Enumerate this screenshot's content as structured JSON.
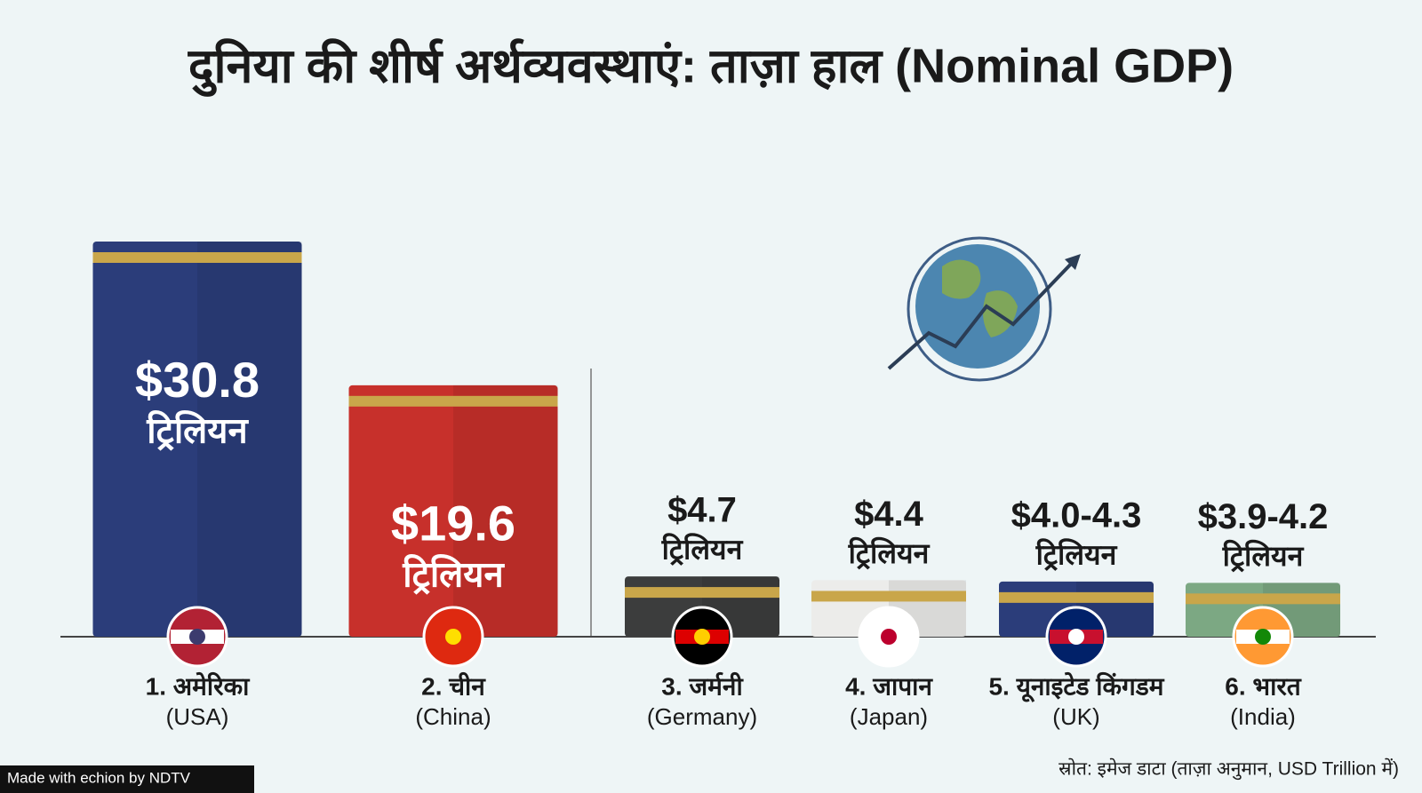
{
  "chart_data": {
    "type": "bar",
    "title": "दुनिया की शीर्ष अर्थव्यवस्थाएं: ताज़ा हाल (Nominal GDP)",
    "categories": [
      "1. अमेरिका",
      "2. चीन",
      "3. जर्मनी",
      "4. जापान",
      "5. यूनाइटेड किंगडम",
      "6. भारत"
    ],
    "categories_en": [
      "(USA)",
      "(China)",
      "(Germany)",
      "(Japan)",
      "(UK)",
      "(India)"
    ],
    "values": [
      30.8,
      19.6,
      4.7,
      4.4,
      4.3,
      4.2
    ],
    "values_low": [
      null,
      null,
      null,
      null,
      4.0,
      3.9
    ],
    "value_labels": [
      "$30.8",
      "$19.6",
      "$4.7",
      "$4.4",
      "$4.0-4.3",
      "$3.9-4.2"
    ],
    "unit_label": "ट्रिलियन",
    "colors": [
      "#2b3d7a",
      "#c7302b",
      "#3c3d3d",
      "#ececea",
      "#2b3d7a",
      "#7ca883"
    ],
    "source": "स्रोत: इमेज डाटा (ताज़ा अनुमान, USD Trillion में)",
    "watermark": "Made with echion by NDTV"
  }
}
